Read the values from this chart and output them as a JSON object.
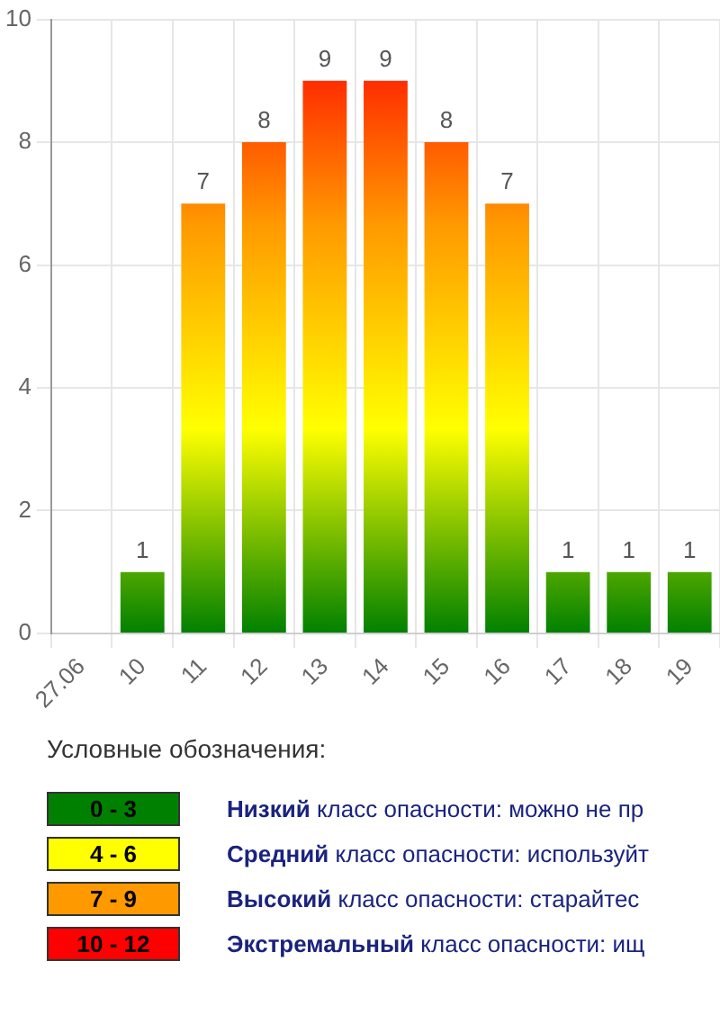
{
  "chart_data": [
    {
      "type": "bar",
      "categories": [
        "27.06",
        "10",
        "11",
        "12",
        "13",
        "14",
        "15",
        "16",
        "17",
        "18",
        "19"
      ],
      "values": [
        null,
        1,
        7,
        8,
        9,
        9,
        8,
        7,
        1,
        1,
        1
      ],
      "ylim": [
        0,
        10
      ],
      "yticks": [
        0,
        2,
        4,
        6,
        8,
        10
      ],
      "grid": true,
      "data_labels": true
    },
    {
      "type": "other",
      "title": "Условные обозначения:",
      "categories": [
        "0 - 3",
        "4 - 6",
        "7 - 9",
        "10 - 12"
      ],
      "colors": [
        "#008000",
        "#ffff00",
        "#ff9900",
        "#ff0000"
      ],
      "annotations": [
        "Низкий класс опасности: можно не пр",
        "Средний класс опасности: используйт",
        "Высокий класс опасности: старайтес",
        "Экстремальный класс опасности: ищ"
      ]
    }
  ]
}
